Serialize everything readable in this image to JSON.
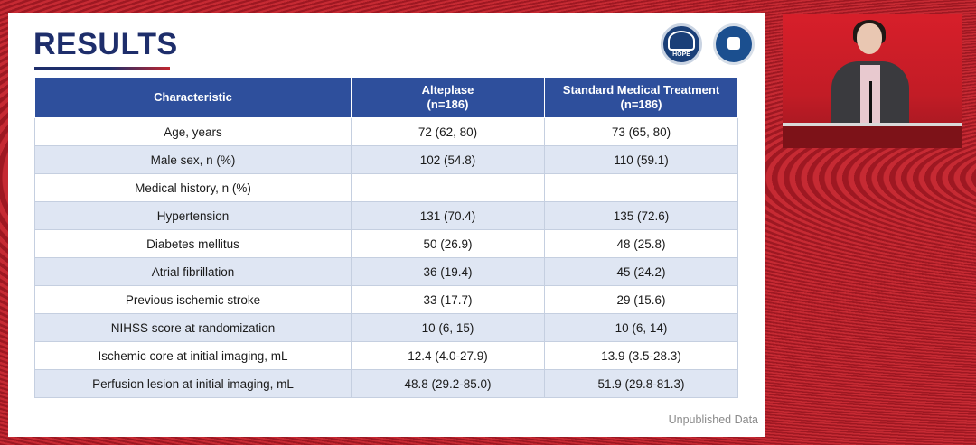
{
  "slide": {
    "title": "RESULTS",
    "footer_note": "Unpublished Data",
    "logos": {
      "logo_left_text": "HOPE"
    }
  },
  "table": {
    "headers": [
      {
        "line1": "Characteristic",
        "line2": ""
      },
      {
        "line1": "Alteplase",
        "line2": "(n=186)"
      },
      {
        "line1": "Standard Medical Treatment",
        "line2": "(n=186)"
      }
    ],
    "rows": [
      [
        "Age, years",
        "72 (62, 80)",
        "73 (65, 80)"
      ],
      [
        "Male sex, n (%)",
        "102 (54.8)",
        "110 (59.1)"
      ],
      [
        "Medical history, n (%)",
        "",
        ""
      ],
      [
        "Hypertension",
        "131 (70.4)",
        "135 (72.6)"
      ],
      [
        "Diabetes mellitus",
        "50 (26.9)",
        "48 (25.8)"
      ],
      [
        "Atrial fibrillation",
        "36 (19.4)",
        "45 (24.2)"
      ],
      [
        "Previous ischemic stroke",
        "33 (17.7)",
        "29 (15.6)"
      ],
      [
        "NIHSS score at randomization",
        "10 (6, 15)",
        "10 (6, 14)"
      ],
      [
        "Ischemic core at initial imaging, mL",
        "12.4 (4.0-27.9)",
        "13.9 (3.5-28.3)"
      ],
      [
        "Perfusion lesion at initial imaging, mL",
        "48.8 (29.2-85.0)",
        "51.9 (29.8-81.3)"
      ]
    ]
  },
  "colors": {
    "header_blue": "#2e4f9c",
    "title_navy": "#1e2e6b",
    "stripe": "#dfe6f3",
    "background_red": "#b3202a"
  }
}
